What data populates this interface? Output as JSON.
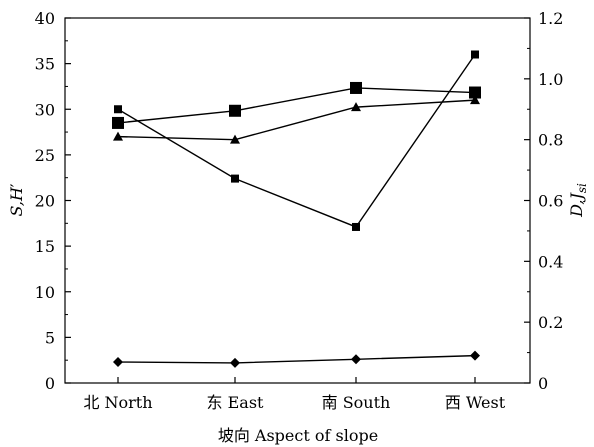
{
  "chart_data": {
    "type": "line",
    "categories": [
      "北  North",
      "东 East",
      "南 South",
      "西 West"
    ],
    "xlabel": "坡向 Aspect of slope",
    "ylabel_left": {
      "main": "S,H",
      "prime": "′"
    },
    "ylabel_right": {
      "main": "D,J",
      "sub": "si"
    },
    "ylim_left": [
      0,
      40
    ],
    "yticks_left": [
      0,
      5,
      10,
      15,
      20,
      25,
      30,
      35,
      40
    ],
    "ylim_right": [
      0,
      1.2
    ],
    "yticks_right": [
      "0",
      "0.2",
      "0.4",
      "0.6",
      "0.8",
      "1.0",
      "1.2"
    ],
    "legend": "none",
    "grid": false,
    "series": [
      {
        "axis": "left",
        "marker": "small-square",
        "values": [
          30.0,
          22.4,
          17.1,
          36.0
        ]
      },
      {
        "axis": "right",
        "marker": "large-square",
        "values": [
          0.855,
          0.895,
          0.97,
          0.955
        ]
      },
      {
        "axis": "right",
        "marker": "triangle",
        "values": [
          0.81,
          0.8,
          0.907,
          0.93
        ]
      },
      {
        "axis": "left",
        "marker": "diamond",
        "values": [
          2.3,
          2.2,
          2.6,
          3.0
        ]
      }
    ]
  }
}
